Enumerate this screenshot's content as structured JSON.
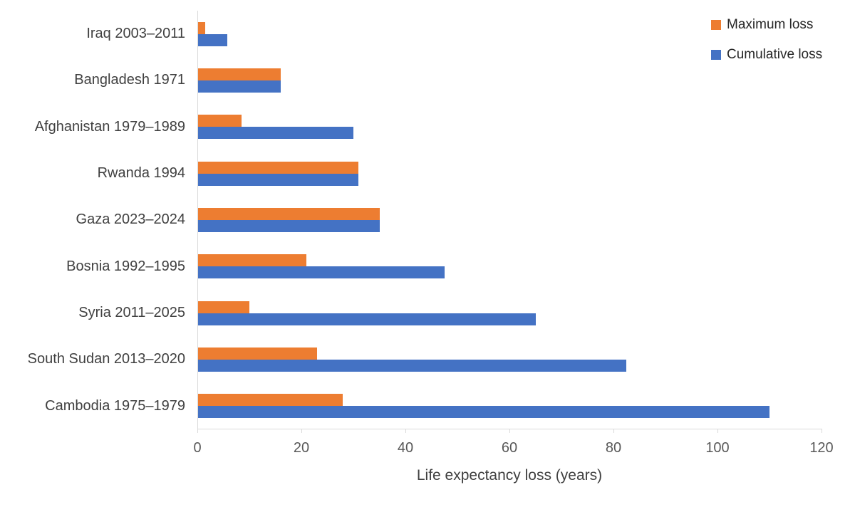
{
  "legend": {
    "items": [
      {
        "label": "Maximum loss",
        "color": "#ED7D31"
      },
      {
        "label": "Cumulative loss",
        "color": "#4472C4"
      }
    ]
  },
  "axis": {
    "xlabel": "Life expectancy loss (years)"
  },
  "colors": {
    "maximum_loss": "#ED7D31",
    "cumulative_loss": "#4472C4",
    "axis_line": "#d9d9d9",
    "tick_label": "#595959",
    "category_label": "#404040"
  },
  "chart_data": {
    "type": "bar",
    "orientation": "horizontal",
    "title": "",
    "xlabel": "Life expectancy loss (years)",
    "ylabel": "",
    "xlim": [
      0,
      120
    ],
    "xticks": [
      0,
      20,
      40,
      60,
      80,
      100,
      120
    ],
    "grid": false,
    "legend_position": "top-right",
    "categories": [
      "Iraq 2003–2011",
      "Bangladesh 1971",
      "Afghanistan 1979–1989",
      "Rwanda 1994",
      "Gaza 2023–2024",
      "Bosnia 1992–1995",
      "Syria 2011–2025",
      "South Sudan 2013–2020",
      "Cambodia 1975–1979"
    ],
    "series": [
      {
        "name": "Maximum loss",
        "color": "#ED7D31",
        "values": [
          1.5,
          16,
          8.5,
          31,
          35,
          21,
          10,
          23,
          28
        ]
      },
      {
        "name": "Cumulative loss",
        "color": "#4472C4",
        "values": [
          5.7,
          16,
          30,
          31,
          35,
          47.5,
          65,
          82.5,
          110
        ]
      }
    ]
  }
}
